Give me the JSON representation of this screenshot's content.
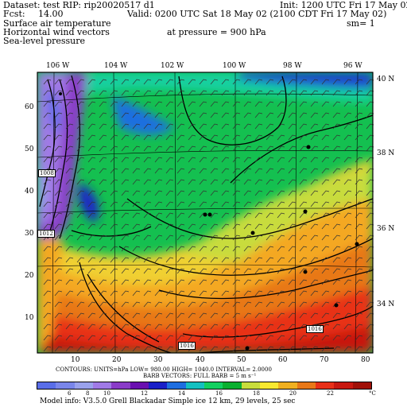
{
  "header": {
    "dataset": "Dataset: test  RIP: rip20020517 d1",
    "init": "Init: 1200 UTC Fri 17 May 02",
    "fcst_label": "Fcst:",
    "fcst_value": "14.00",
    "valid": "Valid: 0200 UTC Sat 18 May 02 (2100 CDT Fri 17 May 02)",
    "fields": [
      "Surface air temperature",
      "Horizontal wind vectors",
      "Sea-level pressure"
    ],
    "pressure": "at pressure =  900 hPa",
    "sm": "sm= 1"
  },
  "map": {
    "lon_labels": [
      "106 W",
      "104 W",
      "102 W",
      "100 W",
      "98 W",
      "96 W"
    ],
    "lat_labels": [
      "40 N",
      "38 N",
      "36 N",
      "34 N"
    ],
    "grid_x_ticks": [
      "10",
      "20",
      "30",
      "40",
      "50",
      "60",
      "70",
      "80"
    ],
    "grid_y_ticks": [
      "60",
      "50",
      "40",
      "30",
      "20",
      "10"
    ],
    "contour_labels": [
      "1008",
      "1012",
      "1016",
      "1016"
    ]
  },
  "footer": {
    "contours": "CONTOURS:  UNITS=hPa   LOW=  980.00     HIGH=  1040.0      INTERVAL=    2.0000",
    "barb_vectors": "BARB VECTORS:  FULL BARB = 5 m s⁻¹",
    "colorbar_labels": [
      "6",
      "8",
      "10",
      "12",
      "14",
      "16",
      "18",
      "20",
      "22"
    ],
    "colorbar_unit": "°C",
    "model_info": "Model info: V3.5.0  Grell    Blackadar  Simple ice     12 km,  29 levels,    25 sec"
  },
  "colors": {
    "colorbar": [
      "#5a6ee8",
      "#7a86ea",
      "#9aa2ec",
      "#a07ae6",
      "#8a3cc8",
      "#6a10b0",
      "#1a20c8",
      "#1e6ee0",
      "#14c0c0",
      "#12d060",
      "#0ab030",
      "#c8dc3c",
      "#f8e830",
      "#f0b020",
      "#e87818",
      "#e83018",
      "#c81810",
      "#a01008"
    ]
  }
}
